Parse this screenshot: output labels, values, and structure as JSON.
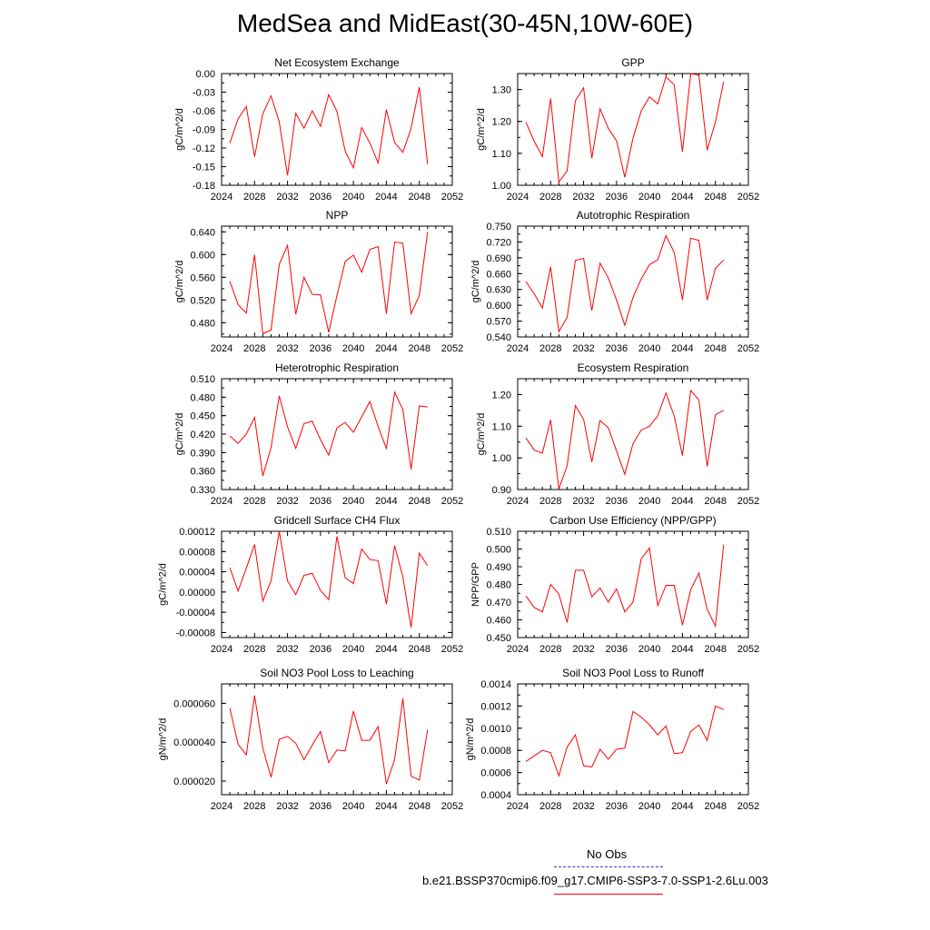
{
  "title": "MedSea and MidEast(30-45N,10W-60E)",
  "colors": {
    "model": "#ff0000",
    "obs": "#3333cc",
    "axis": "#000000"
  },
  "legend": {
    "obs_label": "No Obs",
    "model_label": "b.e21.BSSP370cmip6.f09_g17.CMIP6-SSP3-7.0-SSP1-2.6Lu.003"
  },
  "chart_data": [
    {
      "type": "line",
      "title": "Net Ecosystem Exchange",
      "ylabel": "gC/m^2/d",
      "xlim": [
        2024,
        2052
      ],
      "ylim": [
        -0.18,
        0.0
      ],
      "xticks": [
        2024,
        2028,
        2032,
        2036,
        2040,
        2044,
        2048,
        2052
      ],
      "yticks": [
        "-0.18",
        "-0.15",
        "-0.12",
        "-0.09",
        "-0.06",
        "-0.03",
        "0.00"
      ],
      "x": [
        2025,
        2026,
        2027,
        2028,
        2029,
        2030,
        2031,
        2032,
        2033,
        2034,
        2035,
        2036,
        2037,
        2038,
        2039,
        2040,
        2041,
        2042,
        2043,
        2044,
        2045,
        2046,
        2047,
        2048,
        2049
      ],
      "y": [
        -0.112,
        -0.073,
        -0.053,
        -0.134,
        -0.065,
        -0.036,
        -0.078,
        -0.164,
        -0.064,
        -0.088,
        -0.06,
        -0.085,
        -0.034,
        -0.061,
        -0.125,
        -0.152,
        -0.087,
        -0.112,
        -0.144,
        -0.058,
        -0.111,
        -0.127,
        -0.088,
        -0.022,
        -0.146
      ]
    },
    {
      "type": "line",
      "title": "GPP",
      "ylabel": "gC/m^2/d",
      "xlim": [
        2024,
        2052
      ],
      "ylim": [
        1.0,
        1.35
      ],
      "xticks": [
        2024,
        2028,
        2032,
        2036,
        2040,
        2044,
        2048,
        2052
      ],
      "yticks": [
        "1.00",
        "1.10",
        "1.20",
        "1.30"
      ],
      "x": [
        2025,
        2026,
        2027,
        2028,
        2029,
        2030,
        2031,
        2032,
        2033,
        2034,
        2035,
        2036,
        2037,
        2038,
        2039,
        2040,
        2041,
        2042,
        2043,
        2044,
        2045,
        2046,
        2047,
        2048,
        2049
      ],
      "y": [
        1.198,
        1.138,
        1.09,
        1.272,
        1.01,
        1.045,
        1.265,
        1.305,
        1.085,
        1.24,
        1.178,
        1.14,
        1.025,
        1.148,
        1.233,
        1.277,
        1.255,
        1.34,
        1.315,
        1.105,
        1.35,
        1.345,
        1.11,
        1.198,
        1.325
      ]
    },
    {
      "type": "line",
      "title": "NPP",
      "ylabel": "gC/m^2/d",
      "xlim": [
        2024,
        2052
      ],
      "ylim": [
        0.455,
        0.65
      ],
      "xticks": [
        2024,
        2028,
        2032,
        2036,
        2040,
        2044,
        2048,
        2052
      ],
      "yticks": [
        "0.480",
        "0.520",
        "0.560",
        "0.600",
        "0.640"
      ],
      "x": [
        2025,
        2026,
        2027,
        2028,
        2029,
        2030,
        2031,
        2032,
        2033,
        2034,
        2035,
        2036,
        2037,
        2038,
        2039,
        2040,
        2041,
        2042,
        2043,
        2044,
        2045,
        2046,
        2047,
        2048,
        2049
      ],
      "y": [
        0.553,
        0.512,
        0.497,
        0.6,
        0.461,
        0.467,
        0.583,
        0.616,
        0.495,
        0.56,
        0.53,
        0.529,
        0.463,
        0.528,
        0.588,
        0.599,
        0.569,
        0.609,
        0.614,
        0.496,
        0.622,
        0.62,
        0.496,
        0.528,
        0.64
      ]
    },
    {
      "type": "line",
      "title": "Autotrophic Respiration",
      "ylabel": "gC/m^2/d",
      "xlim": [
        2024,
        2052
      ],
      "ylim": [
        0.54,
        0.75
      ],
      "xticks": [
        2024,
        2028,
        2032,
        2036,
        2040,
        2044,
        2048,
        2052
      ],
      "yticks": [
        "0.540",
        "0.570",
        "0.600",
        "0.630",
        "0.660",
        "0.690",
        "0.720",
        "0.750"
      ],
      "x": [
        2025,
        2026,
        2027,
        2028,
        2029,
        2030,
        2031,
        2032,
        2033,
        2034,
        2035,
        2036,
        2037,
        2038,
        2039,
        2040,
        2041,
        2042,
        2043,
        2044,
        2045,
        2046,
        2047,
        2048,
        2049
      ],
      "y": [
        0.645,
        0.622,
        0.595,
        0.673,
        0.55,
        0.577,
        0.685,
        0.689,
        0.59,
        0.68,
        0.652,
        0.61,
        0.562,
        0.615,
        0.65,
        0.677,
        0.686,
        0.732,
        0.7,
        0.61,
        0.727,
        0.723,
        0.61,
        0.67,
        0.686
      ]
    },
    {
      "type": "line",
      "title": "Heterotrophic Respiration",
      "ylabel": "gC/m^2/d",
      "xlim": [
        2024,
        2052
      ],
      "ylim": [
        0.33,
        0.51
      ],
      "xticks": [
        2024,
        2028,
        2032,
        2036,
        2040,
        2044,
        2048,
        2052
      ],
      "yticks": [
        "0.330",
        "0.360",
        "0.390",
        "0.420",
        "0.450",
        "0.480",
        "0.510"
      ],
      "x": [
        2025,
        2026,
        2027,
        2028,
        2029,
        2030,
        2031,
        2032,
        2033,
        2034,
        2035,
        2036,
        2037,
        2038,
        2039,
        2040,
        2041,
        2042,
        2043,
        2044,
        2045,
        2046,
        2047,
        2048,
        2049
      ],
      "y": [
        0.417,
        0.405,
        0.42,
        0.447,
        0.352,
        0.398,
        0.482,
        0.432,
        0.397,
        0.437,
        0.441,
        0.411,
        0.386,
        0.43,
        0.439,
        0.423,
        0.448,
        0.473,
        0.432,
        0.397,
        0.488,
        0.46,
        0.363,
        0.466,
        0.464
      ]
    },
    {
      "type": "line",
      "title": "Ecosystem Respiration",
      "ylabel": "gC/m^2/d",
      "xlim": [
        2024,
        2052
      ],
      "ylim": [
        0.9,
        1.25
      ],
      "xticks": [
        2024,
        2028,
        2032,
        2036,
        2040,
        2044,
        2048,
        2052
      ],
      "yticks": [
        "0.90",
        "1.00",
        "1.10",
        "1.20"
      ],
      "x": [
        2025,
        2026,
        2027,
        2028,
        2029,
        2030,
        2031,
        2032,
        2033,
        2034,
        2035,
        2036,
        2037,
        2038,
        2039,
        2040,
        2041,
        2042,
        2043,
        2044,
        2045,
        2046,
        2047,
        2048,
        2049
      ],
      "y": [
        1.063,
        1.025,
        1.015,
        1.12,
        0.902,
        0.975,
        1.165,
        1.122,
        0.987,
        1.118,
        1.095,
        1.022,
        0.948,
        1.045,
        1.088,
        1.1,
        1.133,
        1.205,
        1.132,
        1.007,
        1.213,
        1.183,
        0.973,
        1.136,
        1.15
      ]
    },
    {
      "type": "line",
      "title": "Gridcell Surface CH4 Flux",
      "ylabel": "gC/m^2/d",
      "xlim": [
        2024,
        2052
      ],
      "ylim": [
        -9e-05,
        0.00012
      ],
      "xticks": [
        2024,
        2028,
        2032,
        2036,
        2040,
        2044,
        2048,
        2052
      ],
      "yticks": [
        "-0.00008",
        "-0.00004",
        "0.00000",
        "0.00004",
        "0.00008",
        "0.00012"
      ],
      "x": [
        2025,
        2026,
        2027,
        2028,
        2029,
        2030,
        2031,
        2032,
        2033,
        2034,
        2035,
        2036,
        2037,
        2038,
        2039,
        2040,
        2041,
        2042,
        2043,
        2044,
        2045,
        2046,
        2047,
        2048,
        2049
      ],
      "y": [
        4.8e-05,
        2e-06,
        4.7e-05,
        9.4e-05,
        -1.8e-05,
        2.2e-05,
        0.00012,
        2.2e-05,
        -5e-06,
        3.3e-05,
        3.7e-05,
        3e-06,
        -1.5e-05,
        0.00011,
        2.8e-05,
        1.7e-05,
        8.5e-05,
        6.4e-05,
        6.2e-05,
        -2.4e-05,
        9.2e-05,
        3e-05,
        -7e-05,
        7.7e-05,
        5.2e-05
      ]
    },
    {
      "type": "line",
      "title": "Carbon Use Efficiency (NPP/GPP)",
      "ylabel": "NPP/GPP",
      "xlim": [
        2024,
        2052
      ],
      "ylim": [
        0.45,
        0.51
      ],
      "xticks": [
        2024,
        2028,
        2032,
        2036,
        2040,
        2044,
        2048,
        2052
      ],
      "yticks": [
        "0.450",
        "0.460",
        "0.470",
        "0.480",
        "0.490",
        "0.500",
        "0.510"
      ],
      "x": [
        2025,
        2026,
        2027,
        2028,
        2029,
        2030,
        2031,
        2032,
        2033,
        2034,
        2035,
        2036,
        2037,
        2038,
        2039,
        2040,
        2041,
        2042,
        2043,
        2044,
        2045,
        2046,
        2047,
        2048,
        2049
      ],
      "y": [
        0.4735,
        0.467,
        0.4645,
        0.48,
        0.4745,
        0.4585,
        0.488,
        0.488,
        0.473,
        0.478,
        0.47,
        0.4775,
        0.4645,
        0.47,
        0.4945,
        0.5005,
        0.468,
        0.4795,
        0.4795,
        0.457,
        0.477,
        0.4865,
        0.466,
        0.4565,
        0.5025
      ]
    },
    {
      "type": "line",
      "title": "Soil NO3 Pool Loss to Leaching",
      "ylabel": "gN/m^2/d",
      "xlim": [
        2024,
        2052
      ],
      "ylim": [
        1.3e-05,
        7e-05
      ],
      "xticks": [
        2024,
        2028,
        2032,
        2036,
        2040,
        2044,
        2048,
        2052
      ],
      "yticks": [
        "0.000020",
        "0.000040",
        "0.000060"
      ],
      "x": [
        2025,
        2026,
        2027,
        2028,
        2029,
        2030,
        2031,
        2032,
        2033,
        2034,
        2035,
        2036,
        2037,
        2038,
        2039,
        2040,
        2041,
        2042,
        2043,
        2044,
        2045,
        2046,
        2047,
        2048,
        2049
      ],
      "y": [
        5.75e-05,
        3.9e-05,
        3.35e-05,
        6.4e-05,
        3.7e-05,
        2.2e-05,
        4.15e-05,
        4.3e-05,
        3.95e-05,
        3.1e-05,
        3.85e-05,
        4.55e-05,
        2.95e-05,
        3.6e-05,
        3.55e-05,
        5.6e-05,
        4.1e-05,
        4.1e-05,
        4.8e-05,
        1.85e-05,
        3.1e-05,
        6.25e-05,
        2.25e-05,
        2.05e-05,
        4.65e-05
      ]
    },
    {
      "type": "line",
      "title": "Soil NO3 Pool Loss to Runoff",
      "ylabel": "gN/m^2/d",
      "xlim": [
        2024,
        2052
      ],
      "ylim": [
        0.0004,
        0.0014
      ],
      "xticks": [
        2024,
        2028,
        2032,
        2036,
        2040,
        2044,
        2048,
        2052
      ],
      "yticks": [
        "0.0004",
        "0.0006",
        "0.0008",
        "0.0010",
        "0.0012",
        "0.0014"
      ],
      "x": [
        2025,
        2026,
        2027,
        2028,
        2029,
        2030,
        2031,
        2032,
        2033,
        2034,
        2035,
        2036,
        2037,
        2038,
        2039,
        2040,
        2041,
        2042,
        2043,
        2044,
        2045,
        2046,
        2047,
        2048,
        2049
      ],
      "y": [
        0.0007,
        0.00075,
        0.0008,
        0.00078,
        0.00057,
        0.00083,
        0.00094,
        0.00066,
        0.00065,
        0.00081,
        0.00072,
        0.00081,
        0.00082,
        0.00115,
        0.0011,
        0.00103,
        0.00094,
        0.00102,
        0.00077,
        0.00078,
        0.00097,
        0.00103,
        0.00089,
        0.0012,
        0.00117
      ]
    }
  ]
}
